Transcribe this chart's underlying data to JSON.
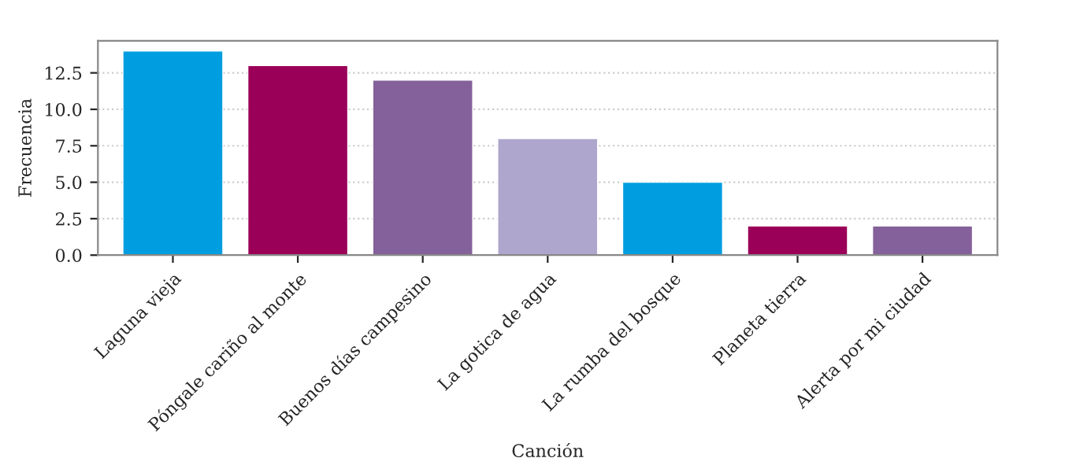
{
  "chart_data": {
    "type": "bar",
    "xlabel": "Canción",
    "ylabel": "Frecuencia",
    "categories": [
      "Laguna vieja",
      "Póngale cariño al monte",
      "Buenos días campesino",
      "La gotica de agua",
      "La rumba del bosque",
      "Planeta tierra",
      "Alerta por mi ciudad"
    ],
    "values": [
      14,
      13,
      12,
      8,
      5,
      2,
      2
    ],
    "colors": [
      "#009ee0",
      "#9b0058",
      "#84619a",
      "#aea6cc",
      "#009ee0",
      "#9b0058",
      "#84619a"
    ],
    "ylim": [
      0,
      14.7
    ],
    "yticks": [
      {
        "value": 0,
        "label": "0.0"
      },
      {
        "value": 2.5,
        "label": "2.5"
      },
      {
        "value": 5,
        "label": "5.0"
      },
      {
        "value": 7.5,
        "label": "7.5"
      },
      {
        "value": 10,
        "label": "10.0"
      },
      {
        "value": 12.5,
        "label": "12.5"
      }
    ],
    "grid": "y"
  }
}
